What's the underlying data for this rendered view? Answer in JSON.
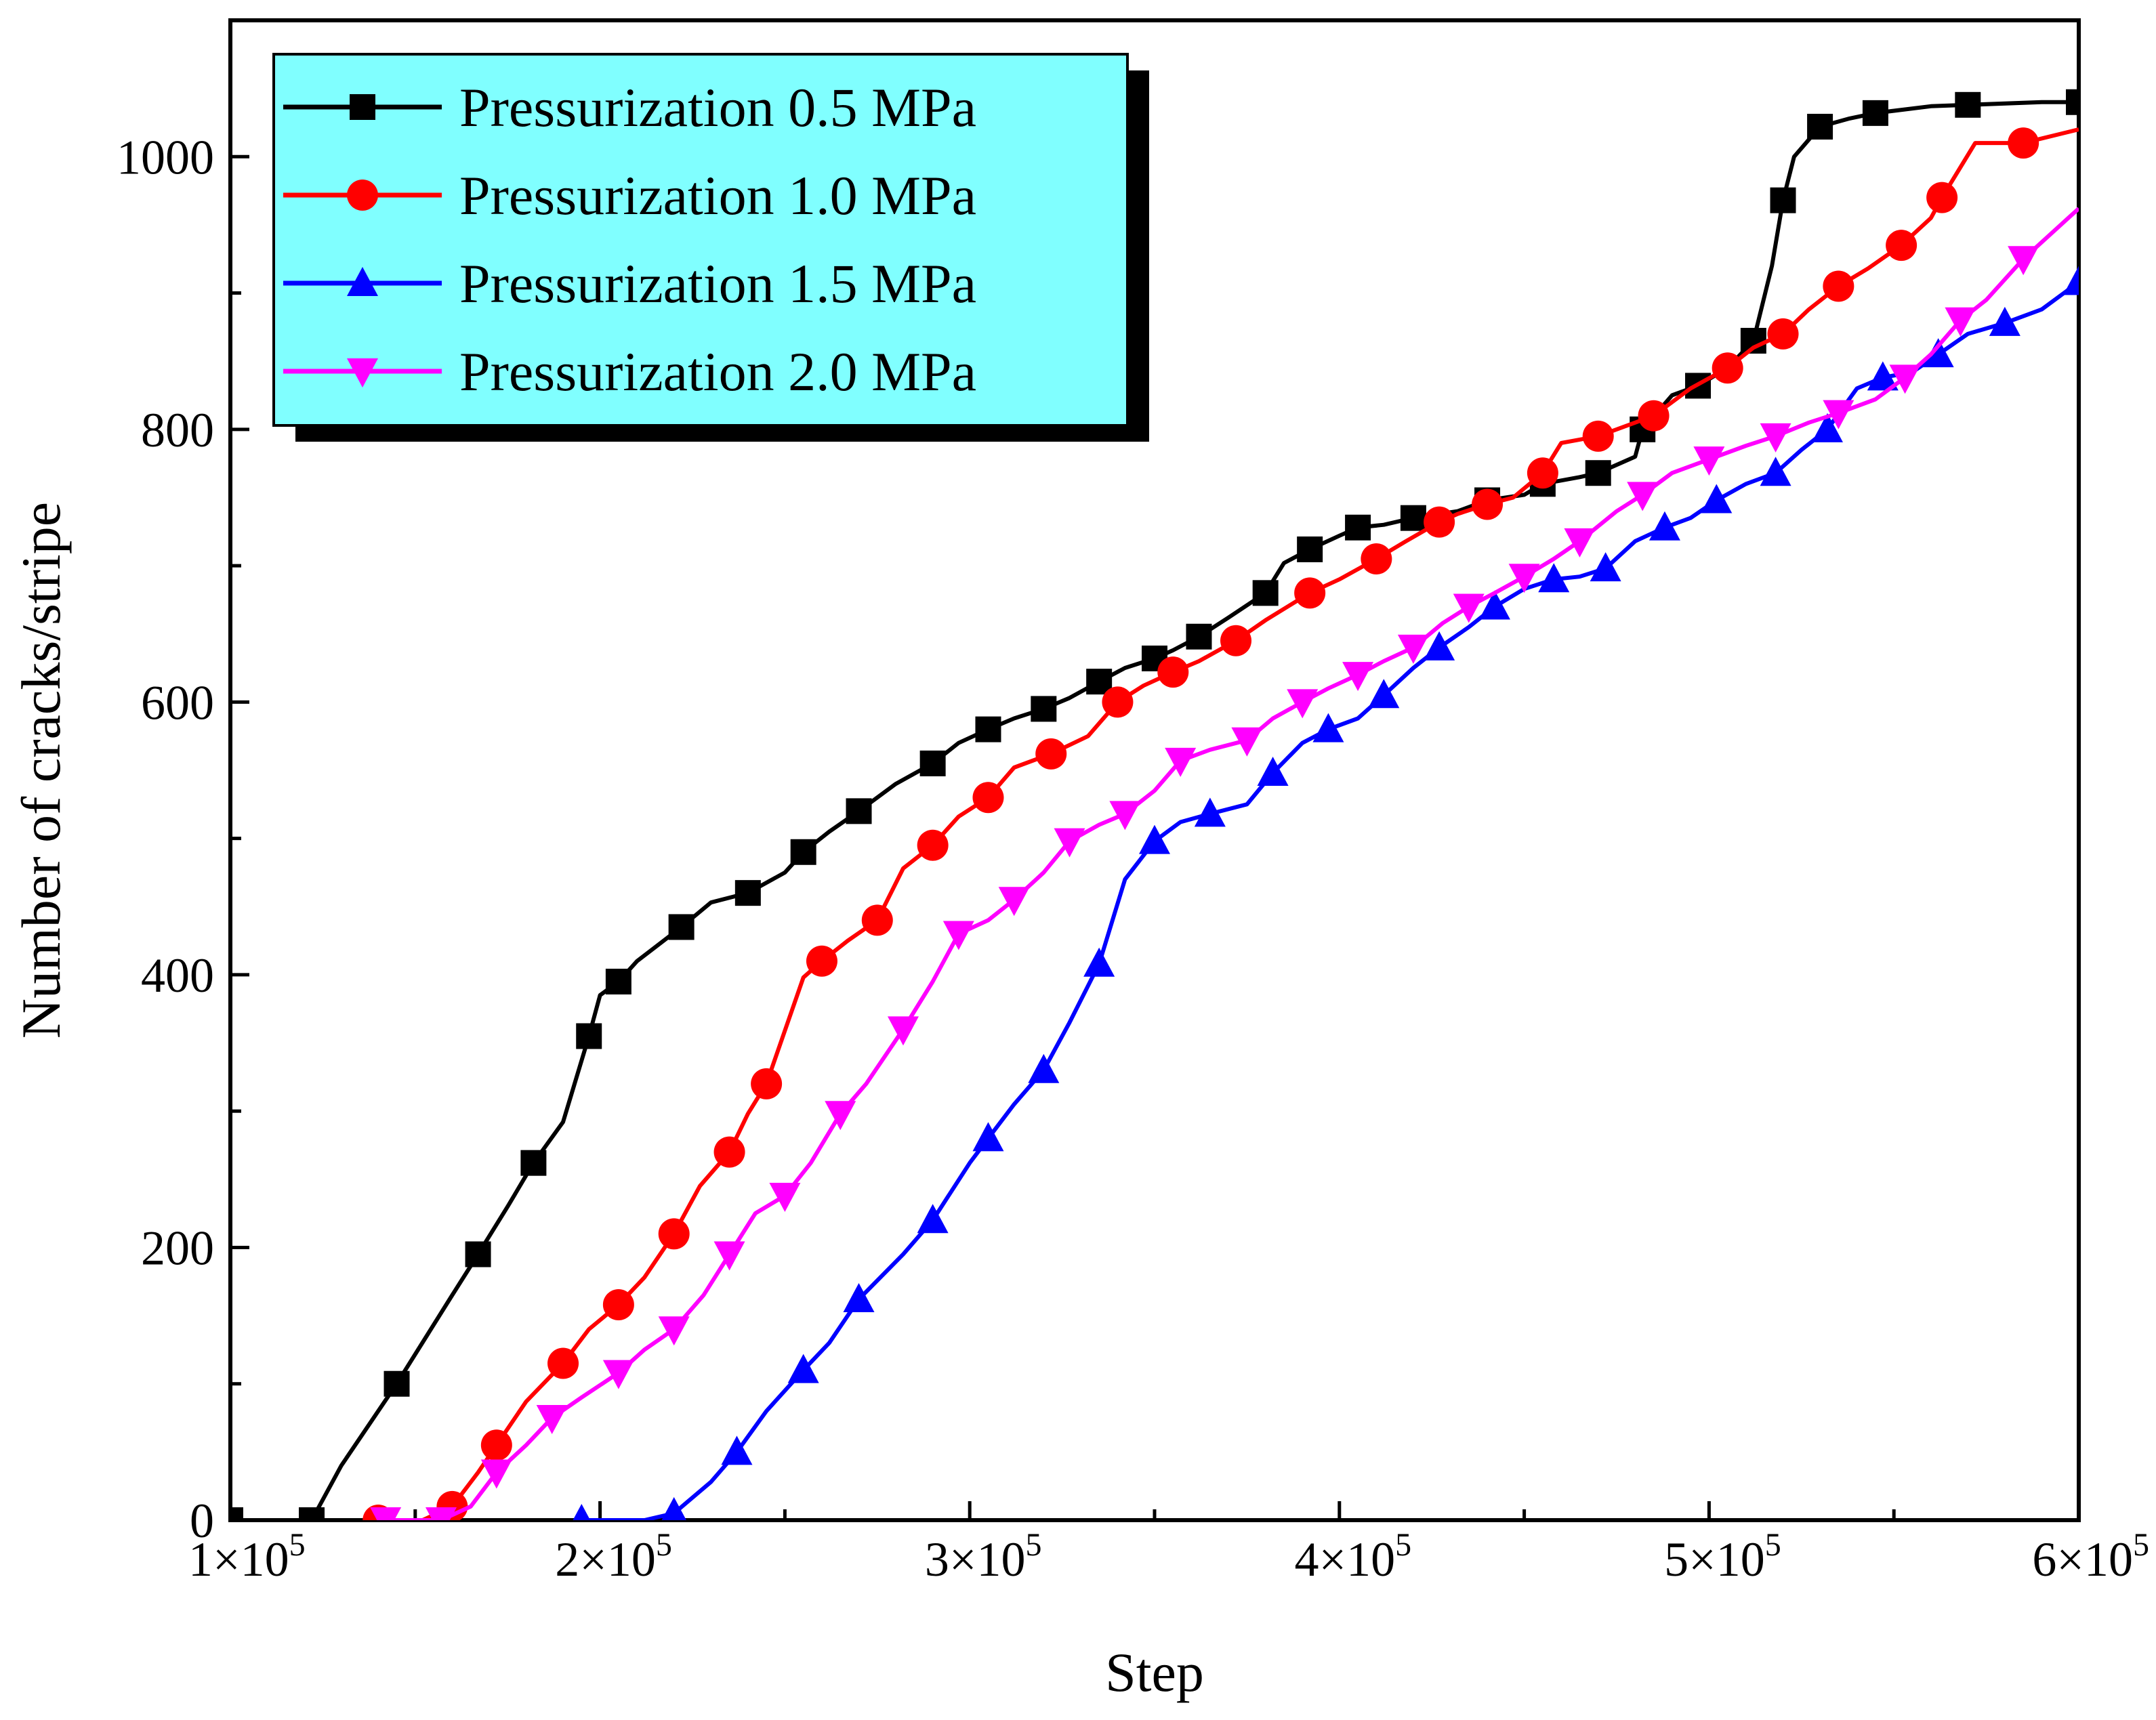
{
  "chart_data": {
    "type": "line",
    "title": "",
    "xlabel": "Step",
    "ylabel": "Number of cracks/stripe",
    "xlim": [
      100000,
      600000
    ],
    "ylim": [
      0,
      1100
    ],
    "x_ticks": [
      100000,
      200000,
      300000,
      400000,
      500000,
      600000
    ],
    "x_tick_labels": [
      {
        "base": "1×10",
        "exp": "5"
      },
      {
        "base": "2×10",
        "exp": "5"
      },
      {
        "base": "3×10",
        "exp": "5"
      },
      {
        "base": "4×10",
        "exp": "5"
      },
      {
        "base": "5×10",
        "exp": "5"
      },
      {
        "base": "6×10",
        "exp": "5"
      }
    ],
    "y_ticks": [
      0,
      200,
      400,
      600,
      800,
      1000
    ],
    "y_tick_labels": [
      "0",
      "200",
      "400",
      "600",
      "800",
      "1000"
    ],
    "legend_position": "top-left",
    "legend_background": "#80ffff",
    "grid": false,
    "series": [
      {
        "name": "Pressurization 0.5 MPa",
        "color": "#000000",
        "marker": "square",
        "x": [
          100000,
          115000,
          122000,
          130000,
          145000,
          160000,
          167000,
          175000,
          182000,
          190000,
          197000,
          200000,
          205000,
          210000,
          222000,
          230000,
          240000,
          250000,
          255000,
          262000,
          270000,
          280000,
          290000,
          297000,
          305000,
          312000,
          320000,
          327000,
          335000,
          342000,
          350000,
          355000,
          362000,
          370000,
          380000,
          385000,
          392000,
          400000,
          405000,
          412000,
          420000,
          432000,
          440000,
          450000,
          455000,
          465000,
          470000,
          480000,
          482000,
          490000,
          497000,
          505000,
          512000,
          517000,
          520000,
          523000,
          530000,
          538000,
          545000,
          560000,
          570000,
          590000,
          600000
        ],
        "y": [
          0,
          0,
          0,
          40,
          100,
          165,
          195,
          230,
          262,
          292,
          355,
          385,
          395,
          410,
          435,
          453,
          460,
          475,
          490,
          505,
          520,
          540,
          555,
          570,
          580,
          588,
          595,
          603,
          615,
          625,
          632,
          638,
          648,
          662,
          680,
          702,
          712,
          722,
          728,
          730,
          735,
          740,
          748,
          752,
          760,
          765,
          768,
          780,
          800,
          825,
          832,
          845,
          865,
          920,
          968,
          1000,
          1022,
          1028,
          1032,
          1037,
          1038,
          1040,
          1040
        ]
      },
      {
        "name": "Pressurization 1.0 MPa",
        "color": "#ff0000",
        "marker": "circle",
        "x": [
          140000,
          152000,
          160000,
          167000,
          172000,
          180000,
          190000,
          197000,
          205000,
          212000,
          220000,
          227000,
          235000,
          240000,
          245000,
          255000,
          260000,
          267000,
          275000,
          282000,
          290000,
          297000,
          305000,
          312000,
          322000,
          332000,
          340000,
          347000,
          355000,
          362000,
          372000,
          380000,
          392000,
          400000,
          410000,
          418000,
          427000,
          432000,
          440000,
          447000,
          455000,
          460000,
          470000,
          480000,
          485000,
          495000,
          505000,
          512000,
          520000,
          527000,
          535000,
          543000,
          552000,
          560000,
          563000,
          572000,
          585000,
          600000
        ],
        "y": [
          0,
          0,
          10,
          35,
          55,
          87,
          115,
          140,
          158,
          178,
          210,
          245,
          270,
          298,
          320,
          398,
          410,
          425,
          440,
          478,
          495,
          516,
          530,
          552,
          562,
          575,
          600,
          612,
          622,
          630,
          645,
          660,
          680,
          690,
          705,
          718,
          732,
          738,
          745,
          750,
          768,
          790,
          795,
          805,
          810,
          830,
          845,
          860,
          870,
          888,
          905,
          918,
          935,
          955,
          970,
          1010,
          1010,
          1020
        ]
      },
      {
        "name": "Pressurization 1.5 MPa",
        "color": "#0000ff",
        "marker": "triangle-up",
        "x": [
          195000,
          212000,
          220000,
          230000,
          237000,
          245000,
          255000,
          262000,
          270000,
          282000,
          290000,
          300000,
          305000,
          312000,
          320000,
          327000,
          335000,
          342000,
          350000,
          357000,
          365000,
          375000,
          382000,
          390000,
          397000,
          405000,
          412000,
          420000,
          427000,
          435000,
          442000,
          450000,
          458000,
          465000,
          472000,
          480000,
          488000,
          495000,
          502000,
          510000,
          518000,
          525000,
          532000,
          540000,
          547000,
          555000,
          562000,
          570000,
          580000,
          590000,
          600000
        ],
        "y": [
          0,
          0,
          5,
          28,
          50,
          80,
          110,
          130,
          162,
          195,
          220,
          262,
          280,
          305,
          330,
          365,
          408,
          470,
          498,
          512,
          518,
          525,
          548,
          570,
          580,
          588,
          605,
          625,
          640,
          655,
          670,
          683,
          690,
          692,
          698,
          718,
          728,
          735,
          748,
          760,
          768,
          785,
          800,
          830,
          838,
          842,
          855,
          870,
          878,
          888,
          908
        ]
      },
      {
        "name": "Pressurization 2.0 MPa",
        "color": "#ff00ff",
        "marker": "triangle-down",
        "x": [
          142000,
          150000,
          157000,
          165000,
          172000,
          180000,
          187000,
          195000,
          205000,
          212000,
          220000,
          228000,
          235000,
          242000,
          250000,
          257000,
          265000,
          272000,
          282000,
          290000,
          297000,
          305000,
          312000,
          320000,
          327000,
          335000,
          342000,
          350000,
          357000,
          365000,
          375000,
          382000,
          390000,
          397000,
          405000,
          412000,
          420000,
          428000,
          435000,
          442000,
          450000,
          458000,
          465000,
          475000,
          482000,
          490000,
          500000,
          510000,
          518000,
          527000,
          535000,
          545000,
          553000,
          560000,
          568000,
          575000,
          585000,
          600000
        ],
        "y": [
          0,
          0,
          0,
          10,
          35,
          55,
          75,
          90,
          108,
          125,
          140,
          165,
          195,
          225,
          238,
          262,
          298,
          320,
          360,
          395,
          430,
          440,
          455,
          475,
          498,
          510,
          518,
          535,
          557,
          565,
          572,
          588,
          600,
          610,
          620,
          630,
          640,
          658,
          670,
          680,
          692,
          705,
          718,
          740,
          752,
          768,
          778,
          788,
          795,
          805,
          812,
          822,
          838,
          855,
          880,
          895,
          925,
          962
        ]
      }
    ]
  }
}
